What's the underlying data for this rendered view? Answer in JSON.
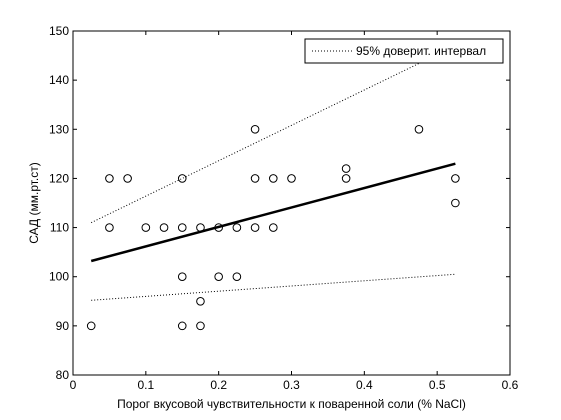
{
  "chart_data": {
    "type": "scatter",
    "title": "",
    "xlabel": "Порог вкусовой чувствительности к поваренной соли (% NaCl)",
    "ylabel": "САД (мм.рт.ст)",
    "xlim": [
      0,
      0.6
    ],
    "ylim": [
      80,
      150
    ],
    "xticks": [
      0,
      0.1,
      0.2,
      0.3,
      0.4,
      0.5,
      0.6
    ],
    "xtick_labels": [
      "0",
      "0.1",
      "0.2",
      "0.3",
      "0.4",
      "0.5",
      "0.6"
    ],
    "yticks": [
      80,
      90,
      100,
      110,
      120,
      130,
      140,
      150
    ],
    "ytick_labels": [
      "80",
      "90",
      "100",
      "110",
      "120",
      "130",
      "140",
      "150"
    ],
    "grid": false,
    "legend_position": "top-right",
    "legend": [
      {
        "label": "95% доверит. интервал",
        "style": "dotted"
      }
    ],
    "points": {
      "x": [
        0.025,
        0.05,
        0.05,
        0.075,
        0.1,
        0.125,
        0.15,
        0.15,
        0.15,
        0.15,
        0.175,
        0.175,
        0.175,
        0.2,
        0.2,
        0.225,
        0.225,
        0.25,
        0.25,
        0.25,
        0.275,
        0.275,
        0.3,
        0.375,
        0.375,
        0.475,
        0.525,
        0.525
      ],
      "y": [
        90,
        120,
        110,
        120,
        110,
        110,
        120,
        110,
        100,
        90,
        110,
        95,
        90,
        110,
        100,
        110,
        100,
        130,
        120,
        110,
        120,
        110,
        120,
        122,
        120,
        130,
        120,
        115
      ]
    },
    "regression_line": {
      "x": [
        0.025,
        0.525
      ],
      "y": [
        103.2,
        123
      ],
      "style": "solid-thick"
    },
    "upper_confidence_band": {
      "x": [
        0.025,
        0.525
      ],
      "y": [
        111,
        147
      ],
      "style": "dotted"
    },
    "lower_confidence_band": {
      "x": [
        0.025,
        0.525
      ],
      "y": [
        95.2,
        100.5
      ],
      "style": "dotted"
    }
  },
  "colors": {
    "ink": "#000000",
    "background": "#ffffff"
  }
}
